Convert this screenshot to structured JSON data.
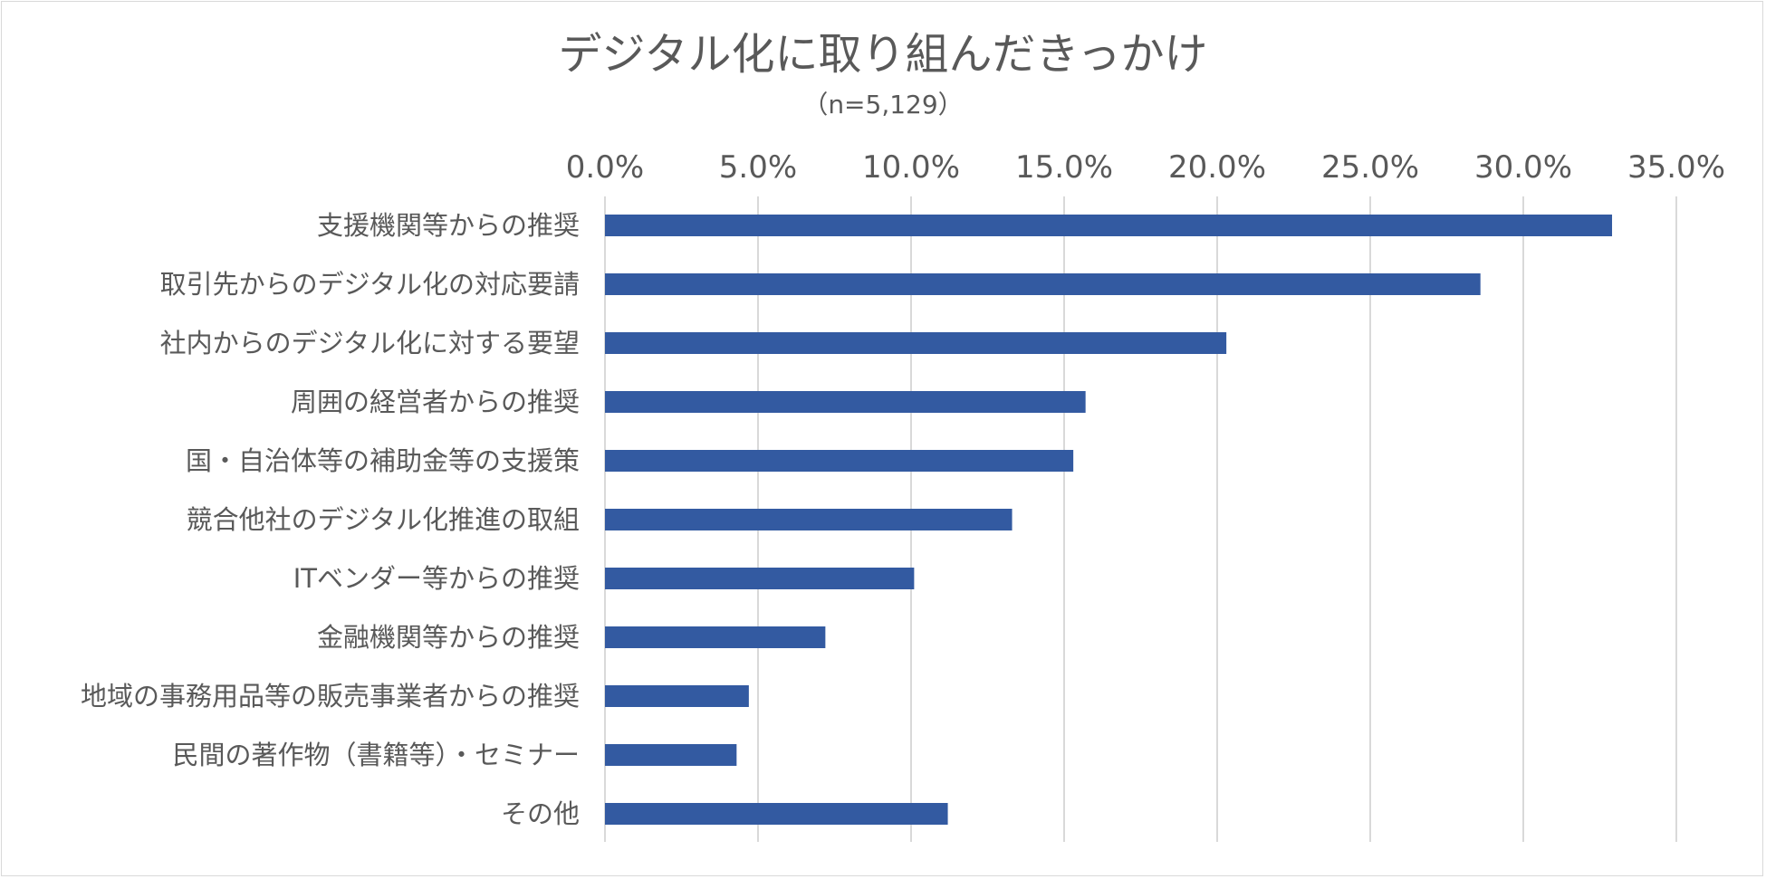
{
  "chart_data": {
    "type": "bar",
    "orientation": "horizontal",
    "title": "デジタル化に取り組んだきっかけ",
    "subtitle": "（n=5,129）",
    "categories": [
      "支援機関等からの推奨",
      "取引先からのデジタル化の対応要請",
      "社内からのデジタル化に対する要望",
      "周囲の経営者からの推奨",
      "国・自治体等の補助金等の支援策",
      "競合他社のデジタル化推進の取組",
      "ITベンダー等からの推奨",
      "金融機関等からの推奨",
      "地域の事務用品等の販売事業者からの推奨",
      "民間の著作物（書籍等）・セミナー",
      "その他"
    ],
    "values": [
      32.9,
      28.6,
      20.3,
      15.7,
      15.3,
      13.3,
      10.1,
      7.2,
      4.7,
      4.3,
      11.2
    ],
    "xlim": [
      0,
      35
    ],
    "xticks": [
      "0.0%",
      "5.0%",
      "10.0%",
      "15.0%",
      "20.0%",
      "25.0%",
      "30.0%",
      "35.0%"
    ],
    "grid": true,
    "legend": "none",
    "bar_color": "#335aa1",
    "grid_color": "#d9d9d9"
  }
}
